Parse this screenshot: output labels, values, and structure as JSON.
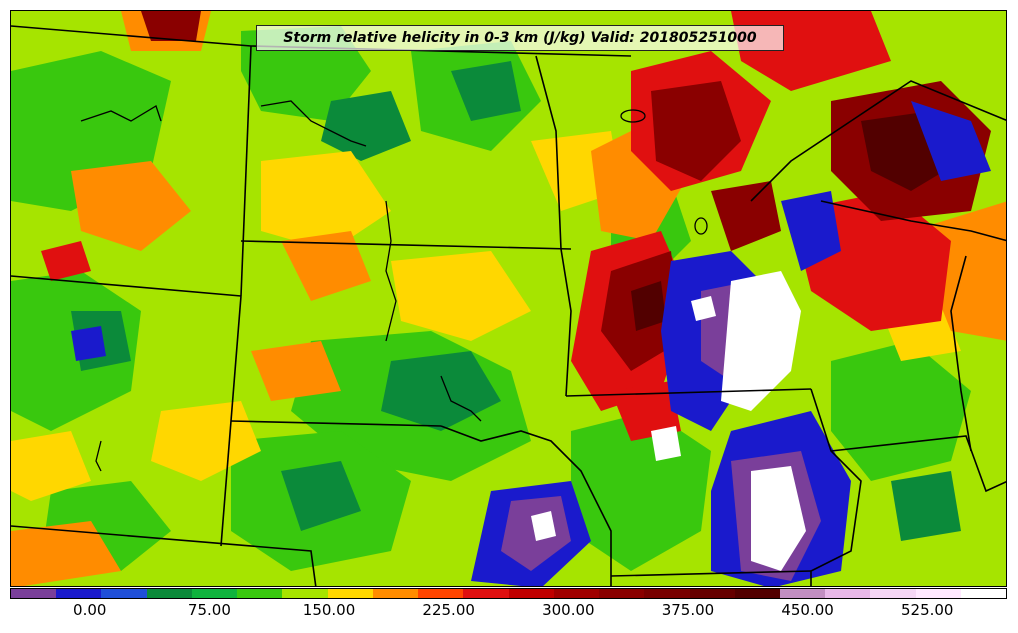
{
  "title": "Storm relative helicity in 0-3 km (J/kg) Valid: 201805251000",
  "colorbar": {
    "colors": [
      "#7a3f9a",
      "#1a1acc",
      "#1f4fd8",
      "#0b8a3a",
      "#0fb33d",
      "#39c80e",
      "#a6e400",
      "#ffd700",
      "#ff8c00",
      "#ff4500",
      "#e01010",
      "#c00000",
      "#a00000",
      "#8a0000",
      "#780000",
      "#660000",
      "#520000",
      "#c28fc2",
      "#e8b8e8",
      "#f5d6f5",
      "#ffe8ff",
      "#ffffff"
    ],
    "tick_labels": [
      "0.00",
      "75.00",
      "150.00",
      "225.00",
      "300.00",
      "375.00",
      "450.00",
      "525.00"
    ],
    "tick_values": [
      0,
      75,
      150,
      225,
      300,
      375,
      450,
      525
    ],
    "range": [
      -50,
      575
    ]
  },
  "field_colors": {
    "background": "#a6e400",
    "green": "#39c80e",
    "dark_green": "#0b8a3a",
    "yellow": "#ffd700",
    "orange": "#ff8c00",
    "red": "#e01010",
    "dark_red": "#8a0000",
    "very_dark_red": "#520000",
    "blue": "#1a1acc",
    "purple": "#7a3f9a",
    "white": "#ffffff"
  }
}
